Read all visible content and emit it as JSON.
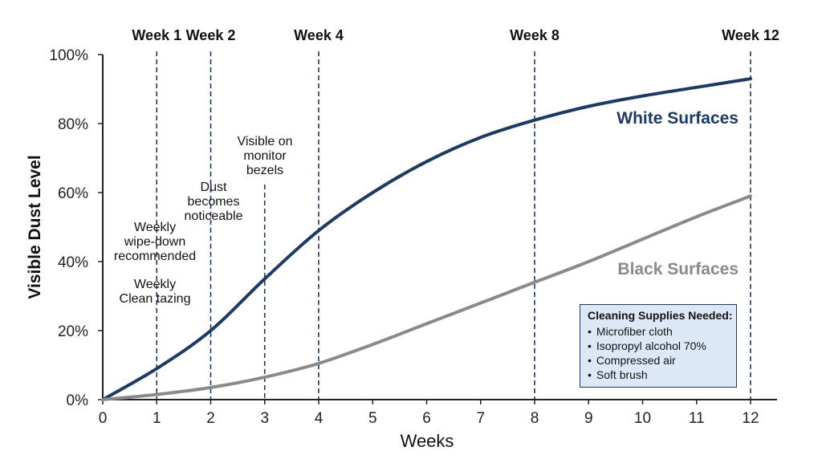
{
  "chart_data": {
    "type": "line",
    "xlabel": "Weeks",
    "ylabel": "Visible Dust Level",
    "xlim": [
      0,
      12
    ],
    "ylim": [
      0,
      100
    ],
    "x_ticks": [
      "0",
      "1",
      "2",
      "3",
      "4",
      "5",
      "6",
      "7",
      "8",
      "9",
      "10",
      "11",
      "12"
    ],
    "y_ticks": [
      "0%",
      "20%",
      "40%",
      "60%",
      "80%",
      "100%"
    ],
    "grid": false,
    "series": [
      {
        "name": "White Surfaces",
        "color": "#1c3a63",
        "x": [
          0,
          1,
          2,
          3,
          4,
          5,
          6,
          7,
          8,
          9,
          10,
          11,
          12
        ],
        "y": [
          0,
          9,
          20,
          35,
          49,
          60,
          69,
          76,
          81,
          85,
          88,
          90.5,
          93
        ]
      },
      {
        "name": "Black Surfaces",
        "color": "#8a8a8a",
        "x": [
          0,
          1,
          2,
          3,
          4,
          5,
          6,
          7,
          8,
          9,
          10,
          11,
          12
        ],
        "y": [
          0,
          1.5,
          3.5,
          6.5,
          10.5,
          16,
          22,
          28,
          34,
          40,
          46.5,
          53,
          59
        ]
      }
    ],
    "markers": [
      {
        "week": 1,
        "label": "Week 1"
      },
      {
        "week": 2,
        "label": "Week 2"
      },
      {
        "week": 4,
        "label": "Week 4"
      },
      {
        "week": 8,
        "label": "Week 8"
      },
      {
        "week": 12,
        "label": "Week 12"
      }
    ],
    "annotations": [
      {
        "name": "annotation-weekly-wipe-down",
        "lines": [
          "Weekly",
          "wipe-down",
          "recommended"
        ]
      },
      {
        "name": "annotation-weekly-clean-tazing",
        "lines": [
          "Weekly",
          "Clean tazing"
        ]
      },
      {
        "name": "annotation-dust-noticeable",
        "lines": [
          "Dust",
          "becomes",
          "noticeable"
        ]
      },
      {
        "name": "annotation-visible-on-bezels",
        "lines": [
          "Visible on",
          "monitor",
          "bezels"
        ]
      }
    ]
  },
  "supplies": {
    "title": "Cleaning Supplies Needed:",
    "items": [
      "Microfiber cloth",
      "Isopropyl alcohol 70%",
      "Compressed air",
      "Soft brush"
    ]
  }
}
